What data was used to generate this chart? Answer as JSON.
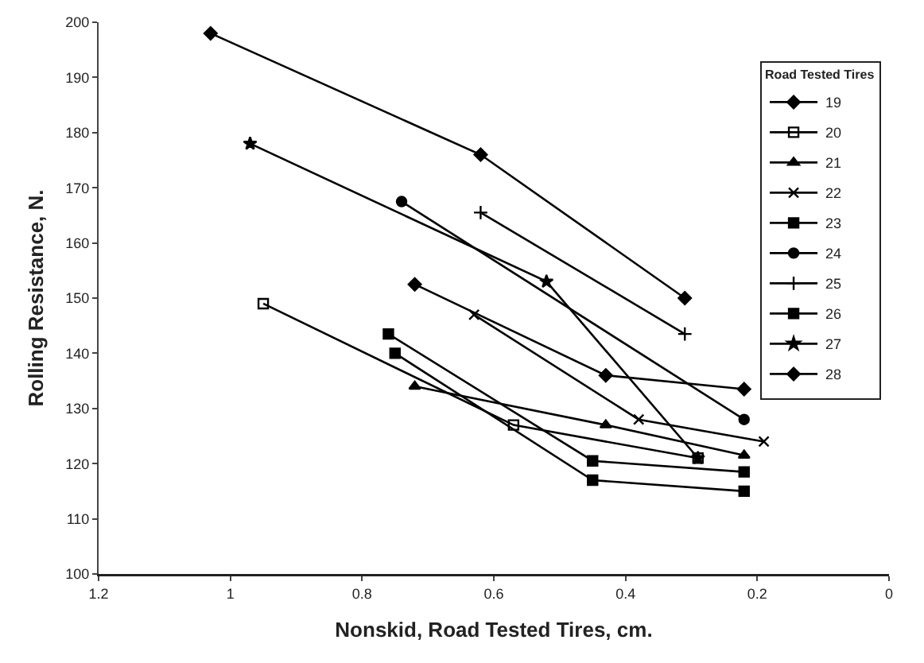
{
  "chart_data": {
    "type": "line",
    "xlabel": "Nonskid, Road Tested Tires, cm.",
    "ylabel": "Rolling Resistance, N.",
    "legend_title": "Road Tested Tires",
    "xlim": [
      1.2,
      0
    ],
    "xticks": [
      1.2,
      1,
      0.8,
      0.6,
      0.4,
      0.2,
      0
    ],
    "ylim": [
      100,
      200
    ],
    "yticks": [
      100,
      110,
      120,
      130,
      140,
      150,
      160,
      170,
      180,
      190,
      200
    ],
    "grid": false,
    "legend": "top right",
    "line_style": "solid",
    "series": [
      {
        "name": "19",
        "color": "#000000",
        "marker": "diamond",
        "x": [
          1.03,
          0.62,
          0.31
        ],
        "values": [
          198,
          176,
          150
        ]
      },
      {
        "name": "20",
        "color": "#000000",
        "marker": "square-open",
        "x": [
          0.95,
          0.57,
          0.29
        ],
        "values": [
          149,
          127,
          121
        ]
      },
      {
        "name": "21",
        "color": "#000000",
        "marker": "triangle",
        "x": [
          0.72,
          0.43,
          0.22
        ],
        "values": [
          134,
          127,
          121.5
        ]
      },
      {
        "name": "22",
        "color": "#000000",
        "marker": "cross",
        "x": [
          0.63,
          0.38,
          0.19
        ],
        "values": [
          147,
          128,
          124
        ]
      },
      {
        "name": "23",
        "color": "#000000",
        "marker": "square",
        "x": [
          0.75,
          0.45,
          0.22
        ],
        "values": [
          140,
          117,
          115
        ]
      },
      {
        "name": "24",
        "color": "#000000",
        "marker": "circle",
        "x": [
          0.74,
          0.22
        ],
        "values": [
          167.5,
          128
        ]
      },
      {
        "name": "25",
        "color": "#000000",
        "marker": "plus",
        "x": [
          0.62,
          0.31
        ],
        "values": [
          165.5,
          143.5
        ]
      },
      {
        "name": "26",
        "color": "#000000",
        "marker": "square",
        "x": [
          0.76,
          0.45,
          0.22
        ],
        "values": [
          143.5,
          120.5,
          118.5
        ]
      },
      {
        "name": "27",
        "color": "#000000",
        "marker": "star",
        "x": [
          0.97,
          0.52,
          0.29
        ],
        "values": [
          178,
          153,
          121
        ]
      },
      {
        "name": "28",
        "color": "#000000",
        "marker": "diamond",
        "x": [
          0.72,
          0.43,
          0.22
        ],
        "values": [
          152.5,
          136,
          133.5
        ]
      }
    ]
  }
}
